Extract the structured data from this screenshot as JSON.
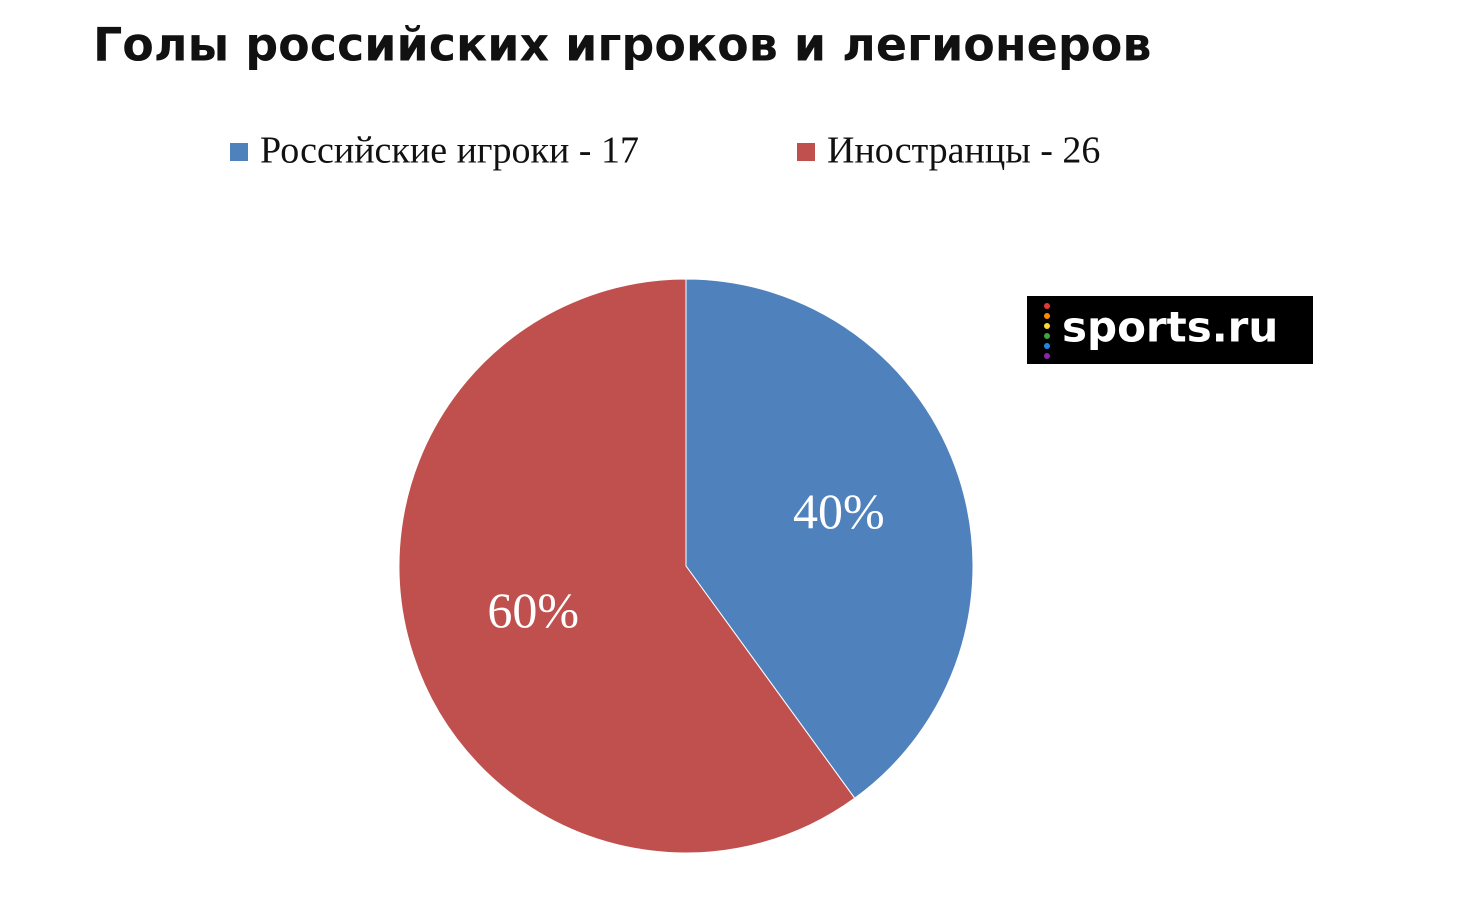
{
  "chart_data": {
    "type": "pie",
    "title": "Голы российских игроков и легионеров",
    "categories": [
      "Российские игроки - 17",
      "Иностранцы - 26"
    ],
    "values": [
      40,
      60
    ],
    "value_labels": [
      "40%",
      "60%"
    ],
    "colors": [
      "#4f81bd",
      "#c0504d"
    ],
    "legend": "top"
  },
  "watermark": "sports.ru"
}
